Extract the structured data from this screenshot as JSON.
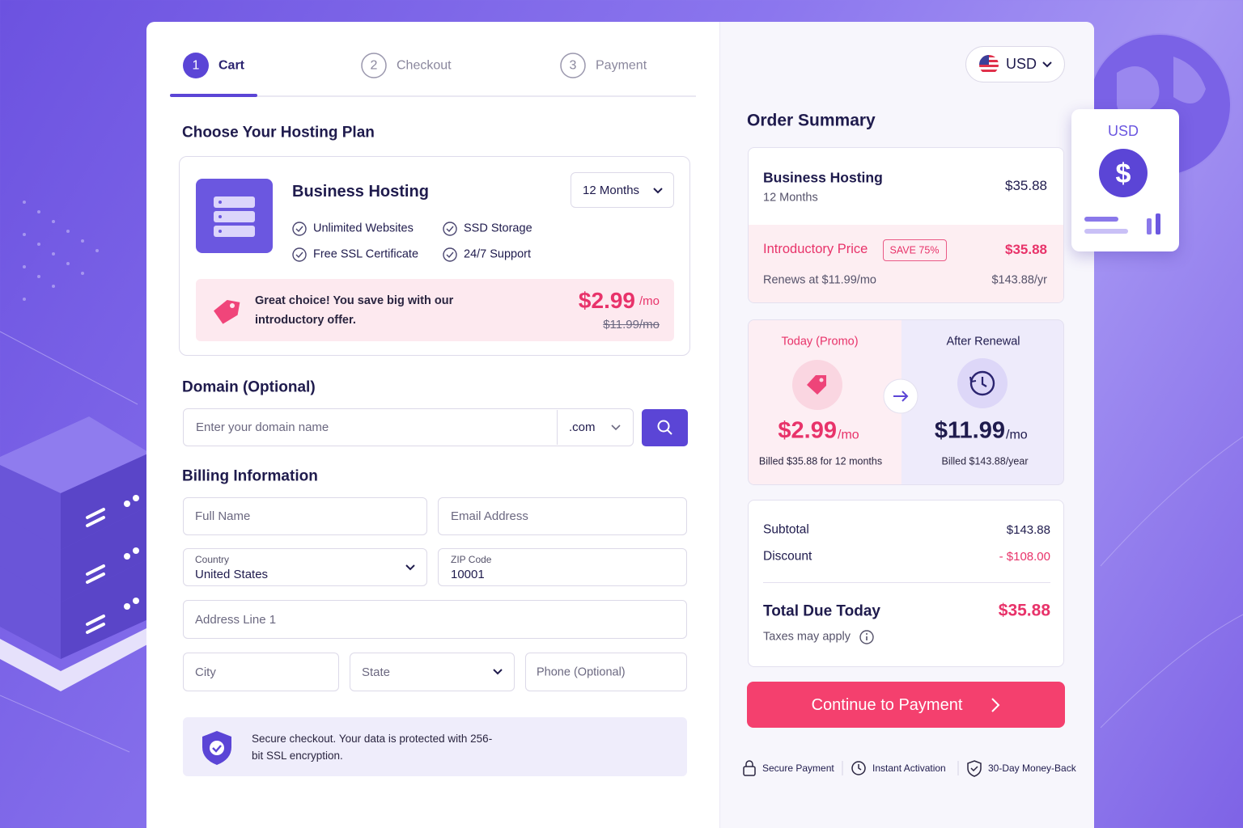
{
  "steps": [
    {
      "number": "1",
      "label": "Cart"
    },
    {
      "number": "2",
      "label": "Checkout"
    },
    {
      "number": "3",
      "label": "Payment"
    }
  ],
  "plan": {
    "heading": "Choose Your Hosting Plan",
    "name": "Business Hosting",
    "term": "12 Months",
    "features": [
      "Unlimited Websites",
      "SSD Storage",
      "Free SSL Certificate",
      "24/7 Support"
    ],
    "promo_text": "Great choice! You save big with our introductory offer.",
    "price": "$2.99",
    "price_unit": "/mo",
    "old_price": "$11.99/mo"
  },
  "domain": {
    "heading": "Domain (Optional)",
    "placeholder": "Enter your domain name",
    "tld": ".com"
  },
  "billing": {
    "heading": "Billing Information",
    "full_name": "Full Name",
    "email": "Email Address",
    "country_label": "Country",
    "country": "United States",
    "zip_label": "ZIP Code",
    "zip": "10001",
    "address": "Address Line 1",
    "city": "City",
    "state": "State",
    "phone": "Phone (Optional)"
  },
  "security_note": "Secure checkout. Your data is protected with 256-bit SSL encryption.",
  "currency": "USD",
  "summary": {
    "heading": "Order Summary",
    "item": {
      "name": "Business Hosting",
      "term": "12 Months",
      "price": "$35.88"
    },
    "intro": {
      "label": "Introductory Price",
      "badge": "SAVE 75%",
      "price": "$35.88",
      "renewal": "Renews at $11.99/mo",
      "renewal_price": "$143.88/yr"
    },
    "today": {
      "label": "Today (Promo)",
      "price": "$2.99",
      "unit": "/mo",
      "billed": "Billed $35.88 for 12 months"
    },
    "after": {
      "label": "After Renewal",
      "price": "$11.99",
      "unit": "/mo",
      "billed": "Billed $143.88/year"
    },
    "subtotal_label": "Subtotal",
    "subtotal": "$143.88",
    "discount_label": "Discount",
    "discount": "- $108.00",
    "total_label": "Total Due Today",
    "total": "$35.88",
    "tax_note": "Taxes may apply"
  },
  "cta": "Continue to Payment",
  "trust": [
    "Secure Payment",
    "Instant Activation",
    "30-Day Money-Back"
  ],
  "widget": {
    "currency": "USD"
  }
}
